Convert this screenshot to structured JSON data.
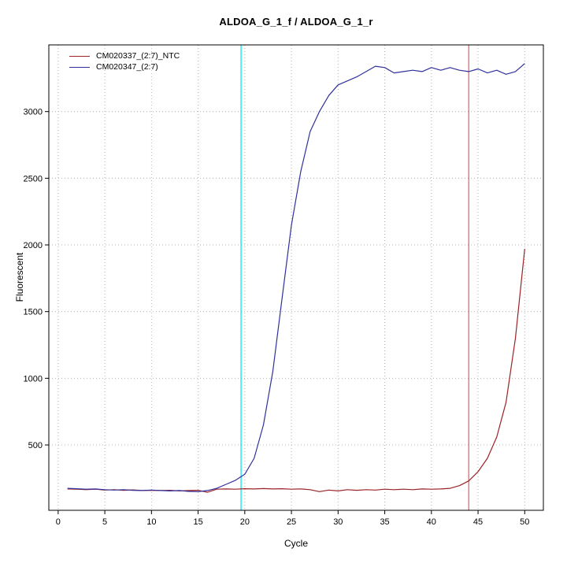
{
  "chart_data": {
    "type": "line",
    "title": "ALDOA_G_1_f / ALDOA_G_1_r",
    "xlabel": "Cycle",
    "ylabel": "Fluorescent",
    "xlim": [
      -1,
      52
    ],
    "ylim": [
      10,
      3500
    ],
    "x_ticks": [
      0,
      5,
      10,
      15,
      20,
      25,
      30,
      35,
      40,
      45,
      50
    ],
    "y_ticks": [
      500,
      1000,
      1500,
      2000,
      2500,
      3000
    ],
    "grid": true,
    "grid_style": "dotted",
    "legend_position": "top-left",
    "x": [
      1,
      2,
      3,
      4,
      5,
      6,
      7,
      8,
      9,
      10,
      11,
      12,
      13,
      14,
      15,
      16,
      17,
      18,
      19,
      20,
      21,
      22,
      23,
      24,
      25,
      26,
      27,
      28,
      29,
      30,
      31,
      32,
      33,
      34,
      35,
      36,
      37,
      38,
      39,
      40,
      41,
      42,
      43,
      44,
      45,
      46,
      47,
      48,
      49,
      50
    ],
    "series": [
      {
        "name": "CM020337_(2:7)_NTC",
        "color": "#9b2226",
        "values": [
          170,
          168,
          165,
          168,
          162,
          165,
          160,
          163,
          158,
          160,
          158,
          160,
          155,
          158,
          160,
          145,
          168,
          170,
          168,
          172,
          170,
          173,
          170,
          172,
          168,
          170,
          165,
          150,
          162,
          155,
          165,
          160,
          165,
          162,
          168,
          165,
          168,
          165,
          170,
          168,
          170,
          175,
          195,
          230,
          300,
          400,
          560,
          820,
          1300,
          1970
        ]
      },
      {
        "name": "CM020347_(2:7)",
        "color": "#30309c",
        "values": [
          175,
          172,
          168,
          170,
          165,
          162,
          165,
          160,
          158,
          162,
          158,
          155,
          158,
          152,
          150,
          158,
          175,
          205,
          235,
          280,
          400,
          650,
          1050,
          1600,
          2150,
          2550,
          2850,
          3000,
          3120,
          3200,
          3230,
          3260,
          3300,
          3340,
          3330,
          3290,
          3300,
          3310,
          3300,
          3330,
          3310,
          3330,
          3310,
          3300,
          3320,
          3290,
          3310,
          3280,
          3300,
          3360
        ]
      }
    ],
    "vlines": [
      {
        "x": 19.6,
        "color": "#00dfe8",
        "name": "threshold-line-cyan"
      },
      {
        "x": 44.0,
        "color": "#e06060",
        "name": "threshold-line-red"
      }
    ],
    "colors": {
      "grid": "#b4b4b4",
      "axis": "#000000",
      "background": "#ffffff"
    }
  }
}
